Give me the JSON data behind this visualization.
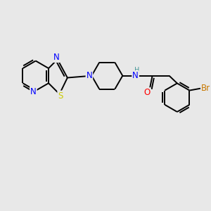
{
  "background_color": "#e8e8e8",
  "atom_colors": {
    "C": "#000000",
    "N": "#0000ff",
    "S": "#cccc00",
    "O": "#ff0000",
    "Br": "#c87800",
    "H": "#4a9999"
  },
  "font_size": 8.5,
  "bond_width": 1.4,
  "fig_width": 3.0,
  "fig_height": 3.0,
  "dpi": 100
}
